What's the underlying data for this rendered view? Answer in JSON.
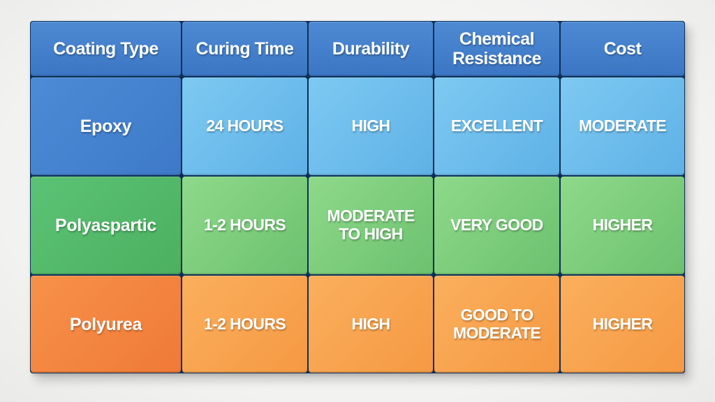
{
  "table": {
    "headers": [
      "Coating Type",
      "Curing Time",
      "Durability",
      "Chemical Resistance",
      "Cost"
    ],
    "rows": [
      {
        "name": "Epoxy",
        "curing_time": "24 HOURS",
        "durability": "HIGH",
        "chemical_resistance": "EXCELLENT",
        "cost": "MODERATE",
        "color": "#4d8bd6",
        "value_color": "#6dbdec"
      },
      {
        "name": "Polyaspartic",
        "curing_time": "1-2 HOURS",
        "durability": "MODERATE TO HIGH",
        "chemical_resistance": "VERY GOOD",
        "cost": "HIGHER",
        "color": "#56ba6c",
        "value_color": "#7fcf7d"
      },
      {
        "name": "Polyurea",
        "curing_time": "1-2 HOURS",
        "durability": "HIGH",
        "chemical_resistance": "GOOD TO MODERATE",
        "cost": "HIGHER",
        "color": "#f38640",
        "value_color": "#f8a450"
      }
    ]
  },
  "colors": {
    "header": "#4480cc",
    "divider": "#0e2f55",
    "background": "#f4f4f3"
  }
}
